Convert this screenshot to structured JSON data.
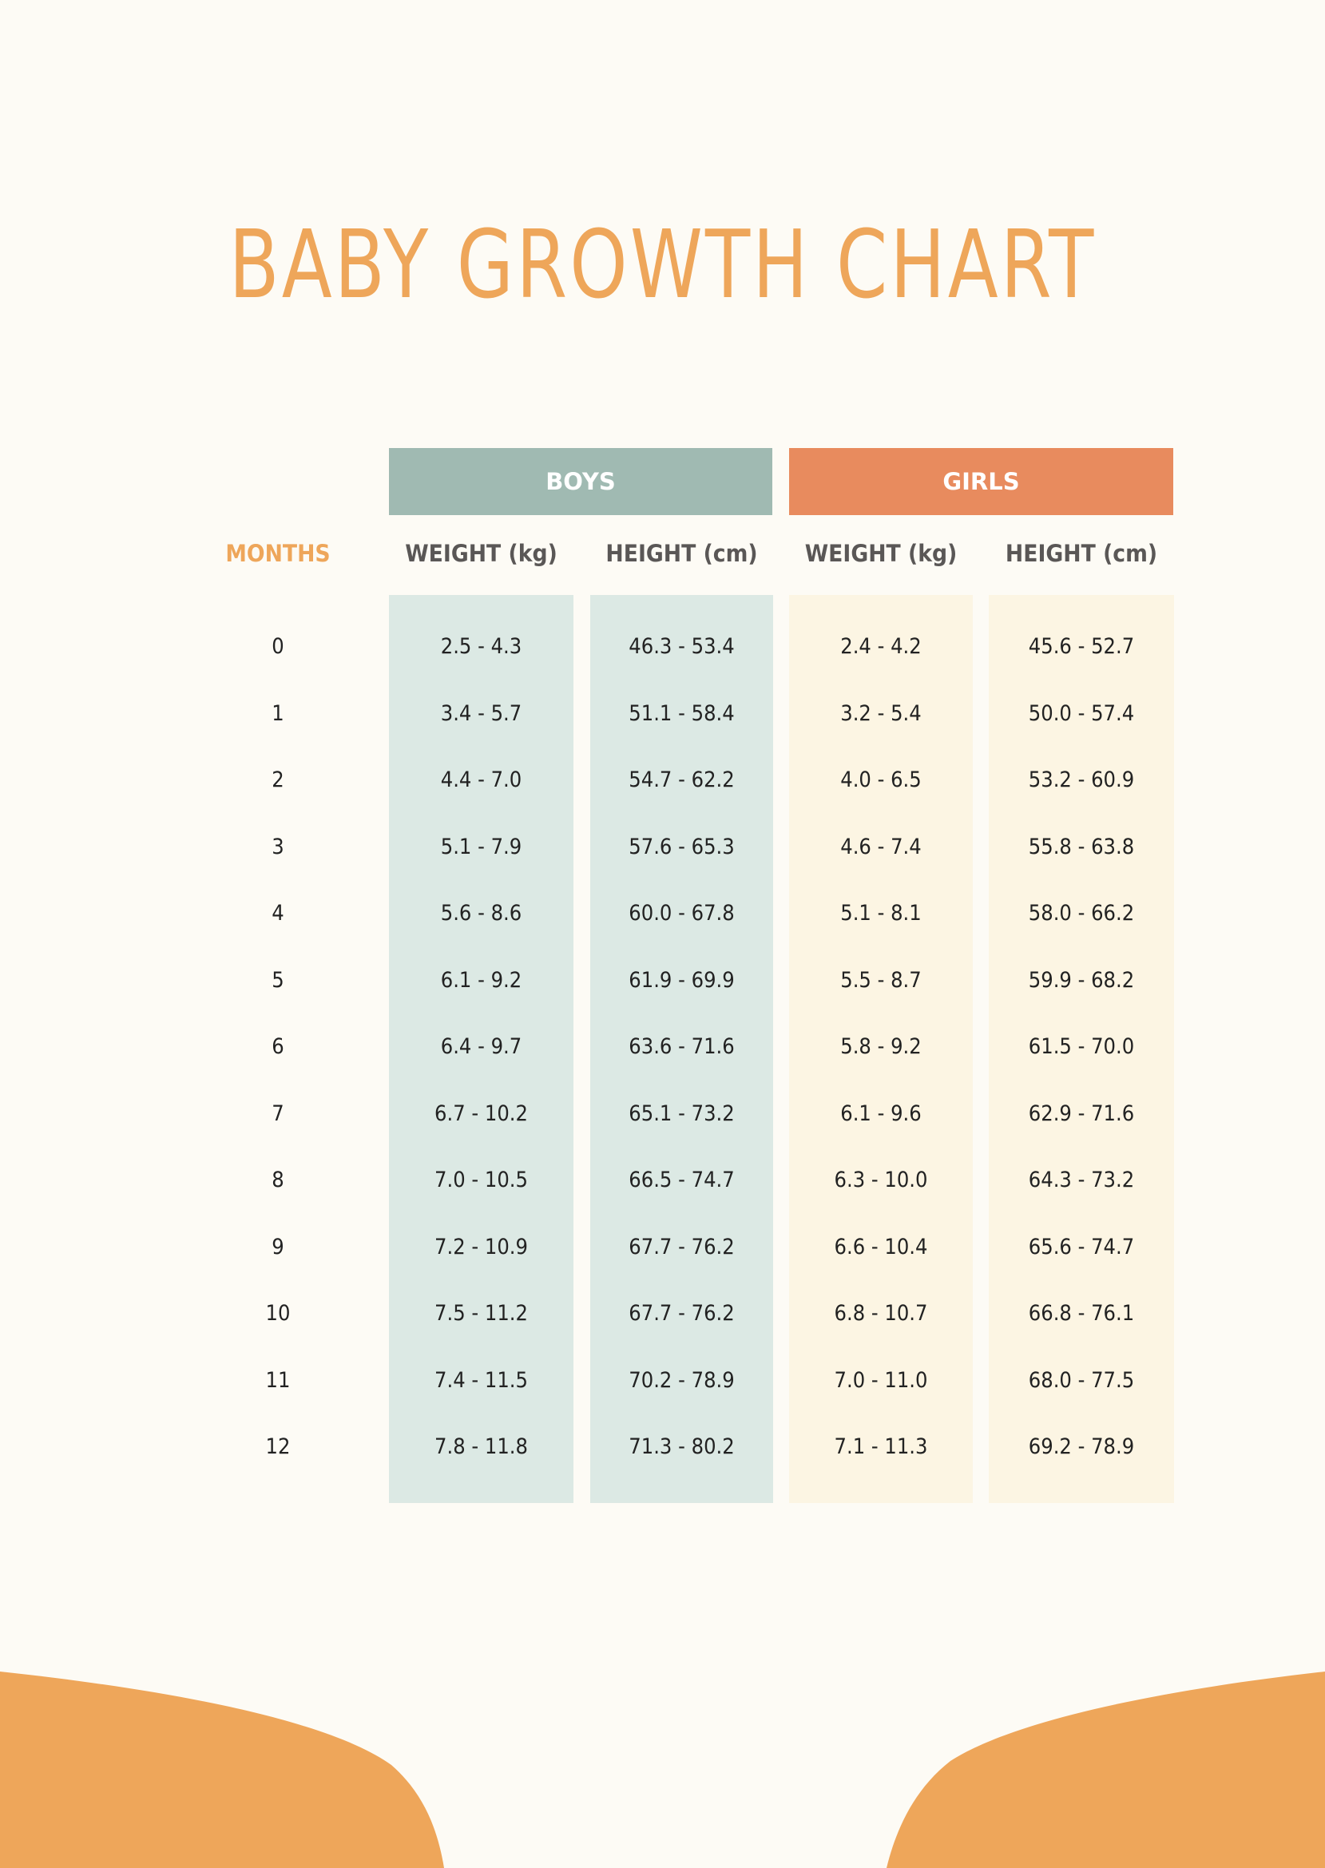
{
  "title": "BABY GROWTH CHART",
  "groups": {
    "boys": "BOYS",
    "girls": "GIRLS"
  },
  "columns": [
    "MONTHS",
    "WEIGHT (kg)",
    "HEIGHT (cm)",
    "WEIGHT (kg)",
    "HEIGHT (cm)"
  ],
  "colors": {
    "accent": "#eea65a",
    "boys_header": "#a0bab2",
    "girls_header": "#e88b5e",
    "boys_column": "#dce9e4",
    "girls_column": "#fcf5e3",
    "background": "#fdfbf5"
  },
  "rows": [
    [
      "0",
      "2.5 - 4.3",
      "46.3 - 53.4",
      "2.4 - 4.2",
      "45.6 - 52.7"
    ],
    [
      "1",
      "3.4 - 5.7",
      "51.1 - 58.4",
      "3.2 - 5.4",
      "50.0 - 57.4"
    ],
    [
      "2",
      "4.4 - 7.0",
      "54.7 - 62.2",
      "4.0 - 6.5",
      "53.2 - 60.9"
    ],
    [
      "3",
      "5.1 - 7.9",
      "57.6 - 65.3",
      "4.6 - 7.4",
      "55.8 - 63.8"
    ],
    [
      "4",
      "5.6 - 8.6",
      "60.0 - 67.8",
      "5.1 - 8.1",
      "58.0 - 66.2"
    ],
    [
      "5",
      "6.1 - 9.2",
      "61.9 - 69.9",
      "5.5 - 8.7",
      "59.9 - 68.2"
    ],
    [
      "6",
      "6.4 - 9.7",
      "63.6 - 71.6",
      "5.8 - 9.2",
      "61.5 - 70.0"
    ],
    [
      "7",
      "6.7 - 10.2",
      "65.1 - 73.2",
      "6.1 - 9.6",
      "62.9 - 71.6"
    ],
    [
      "8",
      "7.0 - 10.5",
      "66.5 - 74.7",
      "6.3 - 10.0",
      "64.3 - 73.2"
    ],
    [
      "9",
      "7.2 - 10.9",
      "67.7 - 76.2",
      "6.6 - 10.4",
      "65.6 - 74.7"
    ],
    [
      "10",
      "7.5 - 11.2",
      "67.7 - 76.2",
      "6.8 - 10.7",
      "66.8 - 76.1"
    ],
    [
      "11",
      "7.4 - 11.5",
      "70.2 - 78.9",
      "7.0 - 11.0",
      "68.0 - 77.5"
    ],
    [
      "12",
      "7.8 - 11.8",
      "71.3 - 80.2",
      "7.1 - 11.3",
      "69.2 - 78.9"
    ]
  ]
}
